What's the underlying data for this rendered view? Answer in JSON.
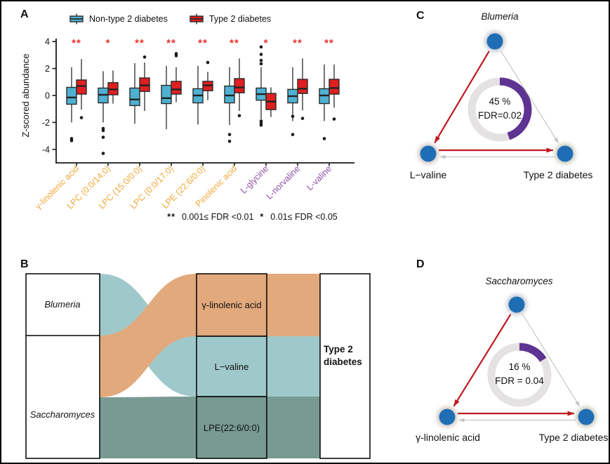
{
  "panels": {
    "a": "A",
    "b": "B",
    "c": "C",
    "d": "D"
  },
  "chart_data": [
    {
      "panel": "A",
      "type": "boxplot",
      "title": "",
      "ylabel": "Z-scored abundance",
      "ylim": [
        -4.7,
        4.2
      ],
      "yticks": [
        4,
        2,
        0,
        -2,
        -4
      ],
      "grid": false,
      "legend_position": "top",
      "significance_note": {
        "double_star": "**",
        "double_star_range": "0.001≤ FDR <0.01",
        "single_star": "*",
        "single_star_range": "0.01≤ FDR <0.05"
      },
      "significance": [
        "**",
        "*",
        "**",
        "**",
        "**",
        "**",
        "*",
        "**",
        "**"
      ],
      "significance_color": "#E8312E",
      "categories": [
        {
          "label": "γ-linolenic acid",
          "color": "#F2A73B"
        },
        {
          "label": "LPC (0:0/14:0)",
          "color": "#F2A73B"
        },
        {
          "label": "LPC (15:0/0:0)",
          "color": "#F2A73B"
        },
        {
          "label": "LPC (0:0/17:0)",
          "color": "#F2A73B"
        },
        {
          "label": "LPE (22:6/0:0)",
          "color": "#F2A73B"
        },
        {
          "label": "Pinolenic acid",
          "color": "#F2A73B"
        },
        {
          "label": "L-glycine",
          "color": "#8E4FA8"
        },
        {
          "label": "L-norvaline",
          "color": "#8E4FA8"
        },
        {
          "label": "L-valine",
          "color": "#8E4FA8"
        }
      ],
      "series": [
        {
          "name": "Non-type 2 diabetes",
          "color": "#4FB1D2",
          "boxes": [
            [
              -2.0,
              -0.65,
              -0.15,
              0.6,
              2.1
            ],
            [
              -2.0,
              -0.55,
              0.05,
              0.55,
              1.8
            ],
            [
              -2.1,
              -0.75,
              -0.3,
              0.55,
              2.4
            ],
            [
              -2.5,
              -0.6,
              -0.2,
              0.75,
              2.2
            ],
            [
              -2.15,
              -0.55,
              0.0,
              0.5,
              2.2
            ],
            [
              -2.2,
              -0.55,
              0.0,
              0.7,
              2.1
            ],
            [
              -1.75,
              -0.35,
              0.1,
              0.55,
              2.1
            ],
            [
              -1.9,
              -0.55,
              -0.05,
              0.45,
              2.1
            ],
            [
              -1.9,
              -0.6,
              0.0,
              0.5,
              2.3
            ]
          ],
          "outliers": [
            [
              -3.2,
              -3.35
            ],
            [
              -2.45,
              -2.6,
              -3.1,
              -4.3
            ],
            [],
            [],
            [],
            [
              -2.9,
              -3.4
            ],
            [
              2.35,
              2.6,
              3.05,
              3.6,
              -1.9,
              -2.05,
              -2.2
            ],
            [
              -1.55,
              -2.9
            ],
            [
              -3.2
            ]
          ]
        },
        {
          "name": "Type 2 diabetes",
          "color": "#DF1F20",
          "boxes": [
            [
              -1.05,
              0.1,
              0.7,
              1.15,
              2.7
            ],
            [
              -0.6,
              0.05,
              0.45,
              0.95,
              1.85
            ],
            [
              -1.15,
              0.3,
              0.75,
              1.3,
              2.45
            ],
            [
              -0.5,
              0.1,
              0.45,
              1.05,
              2.1
            ],
            [
              -0.35,
              0.35,
              0.75,
              1.05,
              1.75
            ],
            [
              -1.15,
              0.2,
              0.6,
              1.25,
              2.75
            ],
            [
              -1.6,
              -1.05,
              -0.45,
              0.15,
              0.6
            ],
            [
              -1.1,
              0.15,
              0.5,
              1.2,
              2.75
            ],
            [
              -0.9,
              0.1,
              0.55,
              1.2,
              2.3
            ]
          ],
          "outliers": [
            [
              -1.65
            ],
            [],
            [
              2.85
            ],
            [
              2.95,
              3.1
            ],
            [
              2.45
            ],
            [
              -1.5
            ],
            [],
            [
              -1.7
            ],
            [
              -1.75
            ]
          ]
        }
      ]
    },
    {
      "panel": "B",
      "type": "sankey",
      "left_nodes": [
        {
          "label": "Blumeria"
        },
        {
          "label": "Saccharomyces"
        }
      ],
      "mid_nodes": [
        {
          "label": "γ-linolenic acid",
          "color": "#E2A97C"
        },
        {
          "label": "L−valine",
          "color": "#9FC8CA"
        },
        {
          "label": "LPE(22:6/0:0)",
          "color": "#789A92"
        }
      ],
      "right_nodes": [
        {
          "label": "Type 2 diabetes"
        }
      ],
      "links": [
        {
          "source": "Blumeria",
          "target": "L−valine",
          "color": "#9FC8CA"
        },
        {
          "source": "Saccharomyces",
          "target": "γ-linolenic acid",
          "color": "#E2A97C"
        },
        {
          "source": "Saccharomyces",
          "target": "LPE(22:6/0:0)",
          "color": "#789A92"
        },
        {
          "source": "γ-linolenic acid",
          "target": "Type 2 diabetes",
          "color": "#E2A97C"
        },
        {
          "source": "L−valine",
          "target": "Type 2 diabetes",
          "color": "#9FC8CA"
        },
        {
          "source": "LPE(22:6/0:0)",
          "target": "Type 2 diabetes",
          "color": "#789A92"
        }
      ]
    },
    {
      "panel": "C",
      "type": "mediation-triangle",
      "exposure": "Blumeria",
      "mediator": "L−valine",
      "outcome": "Type 2 diabetes",
      "mediated_percent": 45,
      "percent_label": "45 %",
      "fdr_label": "FDR=0.02",
      "arc_fraction": 0.45,
      "colors": {
        "node": "#1F6EB5",
        "ring": "#E4E2E2",
        "arc": "#5E3391",
        "strong_edge": "#C0181F",
        "weak_edge": "#C6C6C6"
      }
    },
    {
      "panel": "D",
      "type": "mediation-triangle",
      "exposure": "Saccharomyces",
      "mediator": "γ-linolenic acid",
      "outcome": "Type 2 diabetes",
      "mediated_percent": 16,
      "percent_label": "16 %",
      "fdr_label": "FDR = 0.04",
      "arc_fraction": 0.16,
      "colors": {
        "node": "#1F6EB5",
        "ring": "#E4E2E2",
        "arc": "#5E3391",
        "strong_edge": "#C0181F",
        "weak_edge": "#C6C6C6"
      }
    }
  ]
}
